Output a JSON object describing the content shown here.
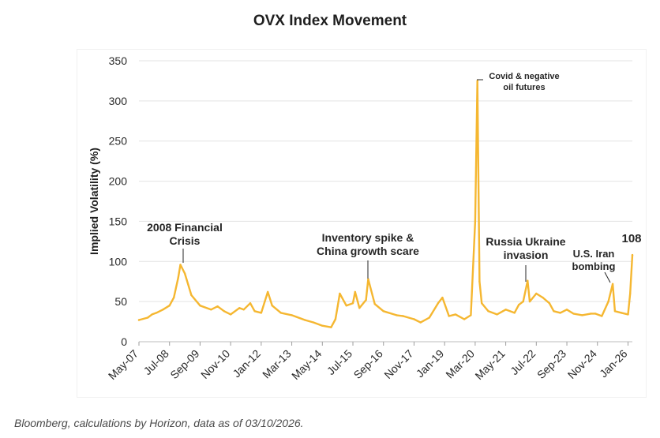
{
  "chart_data": {
    "type": "line",
    "title": "OVX Index Movement",
    "ylabel": "Implied Volatility (%)",
    "xlabel": "",
    "ylim": [
      0,
      350
    ],
    "yticks": [
      0,
      50,
      100,
      150,
      200,
      250,
      300,
      350
    ],
    "grid": true,
    "xtick_labels": [
      "May-07",
      "Jul-08",
      "Sep-09",
      "Nov-10",
      "Jan-12",
      "Mar-13",
      "May-14",
      "Jul-15",
      "Sep-16",
      "Nov-17",
      "Jan-19",
      "Mar-20",
      "May-21",
      "Jul-22",
      "Sep-23",
      "Nov-24",
      "Jan-26"
    ],
    "xtick_dates": [
      "2007-05",
      "2008-07",
      "2009-09",
      "2010-11",
      "2012-01",
      "2013-03",
      "2014-05",
      "2015-07",
      "2016-09",
      "2017-11",
      "2019-01",
      "2020-03",
      "2021-05",
      "2022-07",
      "2023-09",
      "2024-11",
      "2026-01"
    ],
    "series": [
      {
        "color": "#F5B731",
        "x": [
          "2007-05",
          "2007-09",
          "2007-11",
          "2008-01",
          "2008-04",
          "2008-07",
          "2008-09",
          "2008-11",
          "2008-12",
          "2009-02",
          "2009-05",
          "2009-09",
          "2010-02",
          "2010-05",
          "2010-08",
          "2010-11",
          "2011-03",
          "2011-05",
          "2011-08",
          "2011-10",
          "2012-01",
          "2012-04",
          "2012-06",
          "2012-10",
          "2013-03",
          "2013-09",
          "2014-01",
          "2014-05",
          "2014-09",
          "2014-11",
          "2014-12",
          "2015-01",
          "2015-04",
          "2015-07",
          "2015-08",
          "2015-10",
          "2016-01",
          "2016-02",
          "2016-05",
          "2016-09",
          "2017-03",
          "2017-06",
          "2017-11",
          "2018-02",
          "2018-06",
          "2018-10",
          "2018-12",
          "2019-03",
          "2019-06",
          "2019-10",
          "2020-01",
          "2020-03",
          "2020-04",
          "2020-05",
          "2020-06",
          "2020-09",
          "2021-01",
          "2021-05",
          "2021-09",
          "2021-11",
          "2022-01",
          "2022-03",
          "2022-04",
          "2022-07",
          "2022-10",
          "2023-01",
          "2023-03",
          "2023-06",
          "2023-09",
          "2023-12",
          "2024-04",
          "2024-08",
          "2024-10",
          "2025-01",
          "2025-04",
          "2025-06",
          "2025-07",
          "2025-10",
          "2026-01",
          "2026-02",
          "2026-03"
        ],
        "values": [
          27,
          30,
          34,
          36,
          40,
          45,
          55,
          80,
          96,
          85,
          58,
          45,
          40,
          44,
          38,
          34,
          42,
          40,
          48,
          38,
          36,
          62,
          45,
          36,
          33,
          27,
          24,
          20,
          18,
          28,
          44,
          60,
          45,
          48,
          62,
          42,
          52,
          78,
          47,
          38,
          33,
          32,
          28,
          24,
          30,
          48,
          55,
          32,
          34,
          28,
          33,
          150,
          325,
          75,
          48,
          38,
          34,
          40,
          36,
          46,
          50,
          76,
          50,
          60,
          55,
          48,
          38,
          36,
          40,
          35,
          33,
          35,
          35,
          32,
          50,
          72,
          38,
          36,
          34,
          60,
          108
        ]
      }
    ],
    "annotations": [
      {
        "label_lines": [
          "2008 Financial",
          "Crisis"
        ],
        "date": "2008-12",
        "value": 96
      },
      {
        "label_lines": [
          "Inventory spike &",
          "China growth scare"
        ],
        "date": "2016-02",
        "value": 78
      },
      {
        "label_lines": [
          "Covid & negative",
          "oil futures"
        ],
        "date": "2020-04",
        "value": 325
      },
      {
        "label_lines": [
          "Russia Ukraine",
          "invasion"
        ],
        "date": "2022-03",
        "value": 76
      },
      {
        "label_lines": [
          "U.S. Iran",
          "bombing"
        ],
        "date": "2025-06",
        "value": 72
      },
      {
        "label_lines": [
          "108"
        ],
        "date": "2026-03",
        "value": 108
      }
    ]
  },
  "source_note": "Bloomberg, calculations by Horizon, data as of 03/10/2026."
}
